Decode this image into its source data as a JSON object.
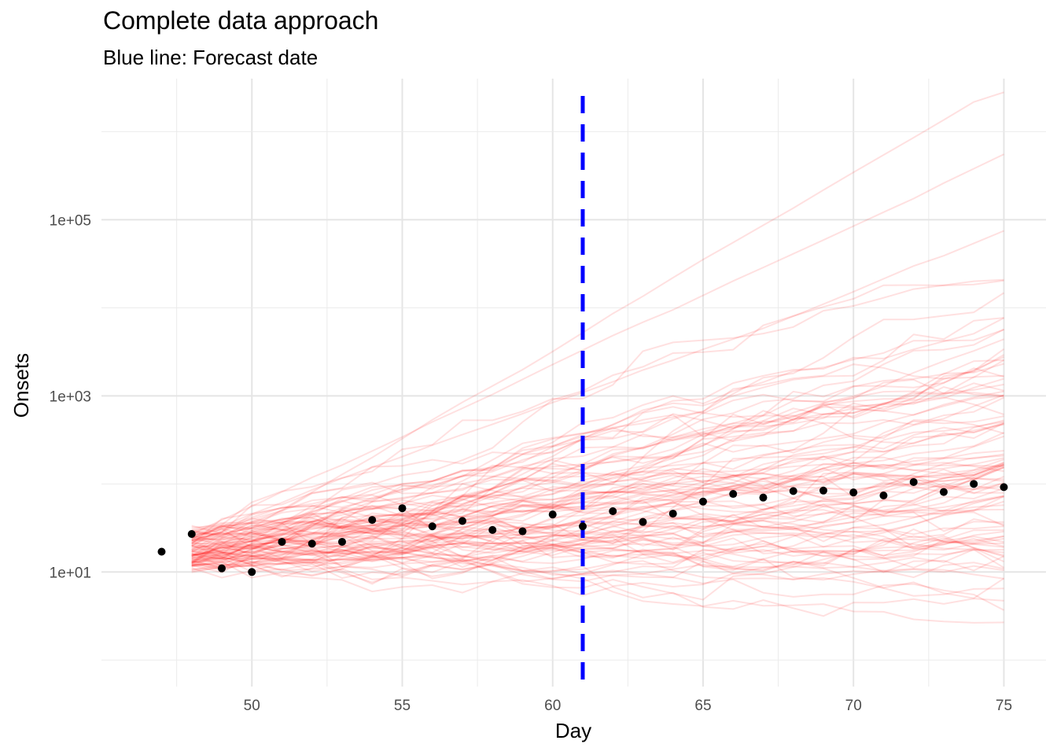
{
  "chart_data": {
    "type": "line",
    "title": "Complete data approach",
    "subtitle": "Blue line: Forecast date",
    "xlabel": "Day",
    "ylabel": "Onsets",
    "xlim": [
      45.0,
      76.4
    ],
    "ylim": [
      0.5,
      4000000
    ],
    "y_scale": "log10",
    "x_ticks": [
      50,
      55,
      60,
      65,
      70,
      75
    ],
    "x_tick_labels": [
      "50",
      "55",
      "60",
      "65",
      "70",
      "75"
    ],
    "y_ticks": [
      10,
      1000,
      100000
    ],
    "y_tick_labels": [
      "1e+01",
      "1e+03",
      "1e+05"
    ],
    "grid": true,
    "forecast_date": 61,
    "forecast_line_color": "#0000ff",
    "observed": {
      "color": "#000000",
      "x": [
        47,
        48,
        49,
        50,
        51,
        52,
        53,
        54,
        55,
        56,
        57,
        58,
        59,
        60,
        61,
        62,
        63,
        64,
        65,
        66,
        67,
        68,
        69,
        70,
        71,
        72,
        73,
        74,
        75
      ],
      "y": [
        17,
        27,
        11,
        10,
        22,
        21,
        22,
        39,
        53,
        33,
        38,
        30,
        29,
        45,
        33,
        49,
        37,
        46,
        63,
        77,
        70,
        83,
        84,
        80,
        74,
        105,
        81,
        100,
        92
      ]
    },
    "simulations": {
      "color": "#ff0000",
      "opacity": 0.12,
      "count": 100,
      "x_start": 48,
      "x_end": 75,
      "median_at_day_75": 160,
      "max_at_day_75": 2800000,
      "min_at_day_75": 5
    }
  }
}
